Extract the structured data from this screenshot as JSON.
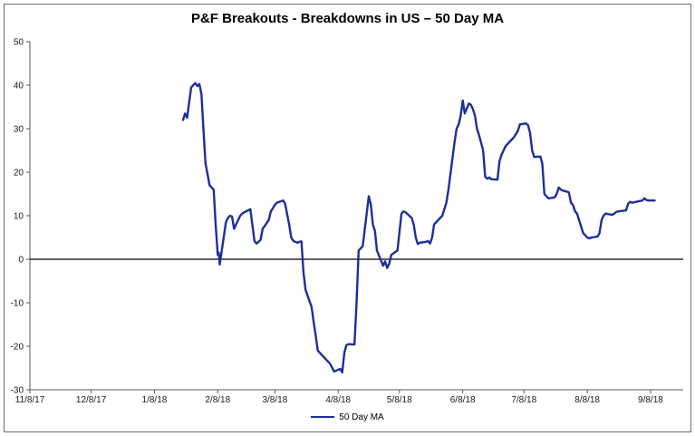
{
  "window": {
    "background": "#ffffff",
    "border_color": "#6e6e6e"
  },
  "chart_data": {
    "type": "line",
    "title": "P&F Breakouts - Breakdowns in US – 50 Day MA",
    "xlabel": "",
    "ylabel": "",
    "grid": "none",
    "zero_line": true,
    "legend_position": "bottom-center",
    "x_ticklabels": [
      "11/8/17",
      "12/8/17",
      "1/8/18",
      "2/8/18",
      "3/8/18",
      "4/8/18",
      "5/8/18",
      "6/8/18",
      "7/8/18",
      "8/8/18",
      "9/8/18"
    ],
    "x_tick_days": [
      0,
      30,
      61,
      92,
      120,
      151,
      181,
      212,
      242,
      273,
      304
    ],
    "x_domain": [
      0,
      320
    ],
    "y_ticks": [
      50,
      40,
      30,
      20,
      10,
      0,
      -10,
      -20,
      -30
    ],
    "ylim": [
      -30,
      50
    ],
    "axis_color": "#595959",
    "zero_line_color": "#000000",
    "series": [
      {
        "name": "50 Day MA",
        "color": "#1C2F9B",
        "points": [
          [
            75,
            32
          ],
          [
            76,
            33.5
          ],
          [
            77,
            32.5
          ],
          [
            78,
            36
          ],
          [
            79,
            39.5
          ],
          [
            80,
            40
          ],
          [
            81,
            40.5
          ],
          [
            82,
            39.8
          ],
          [
            83,
            40.3
          ],
          [
            84,
            38
          ],
          [
            85,
            30
          ],
          [
            86,
            22
          ],
          [
            88,
            17
          ],
          [
            89,
            16.5
          ],
          [
            90,
            16
          ],
          [
            91,
            8
          ],
          [
            92,
            1
          ],
          [
            92.5,
            1.5
          ],
          [
            93,
            -1.2
          ],
          [
            96,
            8.5
          ],
          [
            97,
            9.5
          ],
          [
            98,
            10
          ],
          [
            99,
            9.8
          ],
          [
            100,
            7
          ],
          [
            103,
            10
          ],
          [
            104,
            10.5
          ],
          [
            105,
            10.8
          ],
          [
            106,
            11
          ],
          [
            107,
            11.3
          ],
          [
            108,
            11.5
          ],
          [
            110,
            4.2
          ],
          [
            111,
            3.6
          ],
          [
            112,
            4
          ],
          [
            113,
            4.5
          ],
          [
            114,
            7
          ],
          [
            117,
            9
          ],
          [
            118,
            11
          ],
          [
            120,
            12.5
          ],
          [
            121,
            13
          ],
          [
            124,
            13.5
          ],
          [
            125,
            12.8
          ],
          [
            127,
            8
          ],
          [
            128,
            5
          ],
          [
            129,
            4.2
          ],
          [
            131,
            3.8
          ],
          [
            132,
            4
          ],
          [
            133,
            4.1
          ],
          [
            134,
            -3
          ],
          [
            135,
            -7
          ],
          [
            138,
            -11
          ],
          [
            139,
            -14.5
          ],
          [
            140,
            -17.5
          ],
          [
            141,
            -21
          ],
          [
            144,
            -22.5
          ],
          [
            145,
            -23
          ],
          [
            147,
            -24
          ],
          [
            149,
            -25.8
          ],
          [
            152,
            -25.2
          ],
          [
            153,
            -26
          ],
          [
            154,
            -21.5
          ],
          [
            155,
            -19.8
          ],
          [
            156,
            -19.5
          ],
          [
            159,
            -19.6
          ],
          [
            160,
            -10
          ],
          [
            161,
            2
          ],
          [
            162,
            2.5
          ],
          [
            163,
            3
          ],
          [
            166,
            14.5
          ],
          [
            167,
            12.5
          ],
          [
            168,
            8
          ],
          [
            169,
            6.5
          ],
          [
            170,
            2
          ],
          [
            173,
            -1.5
          ],
          [
            174,
            -0.5
          ],
          [
            175,
            -2
          ],
          [
            176,
            -1
          ],
          [
            177,
            1
          ],
          [
            180,
            2
          ],
          [
            182,
            10.5
          ],
          [
            183,
            11
          ],
          [
            184,
            10.8
          ],
          [
            187,
            9.5
          ],
          [
            188,
            8
          ],
          [
            189,
            5
          ],
          [
            190,
            3.5
          ],
          [
            191,
            3.8
          ],
          [
            194,
            4
          ],
          [
            195,
            4.2
          ],
          [
            196,
            3.6
          ],
          [
            197,
            5
          ],
          [
            198,
            8
          ],
          [
            202,
            10
          ],
          [
            203,
            11.5
          ],
          [
            204,
            13
          ],
          [
            205,
            16
          ],
          [
            208,
            27
          ],
          [
            209,
            30
          ],
          [
            210,
            31
          ],
          [
            211,
            33
          ],
          [
            212,
            36.5
          ],
          [
            213,
            33.5
          ],
          [
            215,
            35.8
          ],
          [
            216,
            35.5
          ],
          [
            217,
            34.5
          ],
          [
            218,
            33
          ],
          [
            219,
            30
          ],
          [
            220,
            28.5
          ],
          [
            222,
            25
          ],
          [
            223,
            19
          ],
          [
            224,
            18.5
          ],
          [
            225,
            18.8
          ],
          [
            226,
            18.4
          ],
          [
            229,
            18.3
          ],
          [
            230,
            22.5
          ],
          [
            231,
            24
          ],
          [
            232,
            25
          ],
          [
            233,
            26
          ],
          [
            236,
            27.5
          ],
          [
            237,
            28
          ],
          [
            239,
            29.5
          ],
          [
            240,
            31
          ],
          [
            243,
            31.2
          ],
          [
            244,
            30.8
          ],
          [
            245,
            29
          ],
          [
            246,
            25
          ],
          [
            247,
            23.5
          ],
          [
            250,
            23.6
          ],
          [
            251,
            22
          ],
          [
            252,
            15
          ],
          [
            253,
            14.5
          ],
          [
            254,
            14
          ],
          [
            257,
            14.2
          ],
          [
            258,
            15
          ],
          [
            259,
            16.5
          ],
          [
            260,
            16
          ],
          [
            261,
            15.8
          ],
          [
            264,
            15.4
          ],
          [
            265,
            13
          ],
          [
            266,
            12.5
          ],
          [
            267,
            11
          ],
          [
            268,
            10.5
          ],
          [
            271,
            6
          ],
          [
            272,
            5.5
          ],
          [
            273,
            5
          ],
          [
            274,
            4.8
          ],
          [
            275,
            5
          ],
          [
            278,
            5.2
          ],
          [
            279,
            6
          ],
          [
            280,
            9
          ],
          [
            281,
            10
          ],
          [
            282,
            10.5
          ],
          [
            285,
            10.2
          ],
          [
            286,
            10.4
          ],
          [
            287,
            10.8
          ],
          [
            288,
            11
          ],
          [
            292,
            11.2
          ],
          [
            293,
            12.8
          ],
          [
            294,
            13.2
          ],
          [
            295,
            13
          ],
          [
            300,
            13.5
          ],
          [
            301,
            14
          ],
          [
            302,
            13.6
          ],
          [
            303,
            13.5
          ],
          [
            306,
            13.5
          ]
        ]
      }
    ],
    "legend": {
      "entries": [
        {
          "label": "50 Day MA",
          "color": "#1C2F9B"
        }
      ]
    }
  }
}
